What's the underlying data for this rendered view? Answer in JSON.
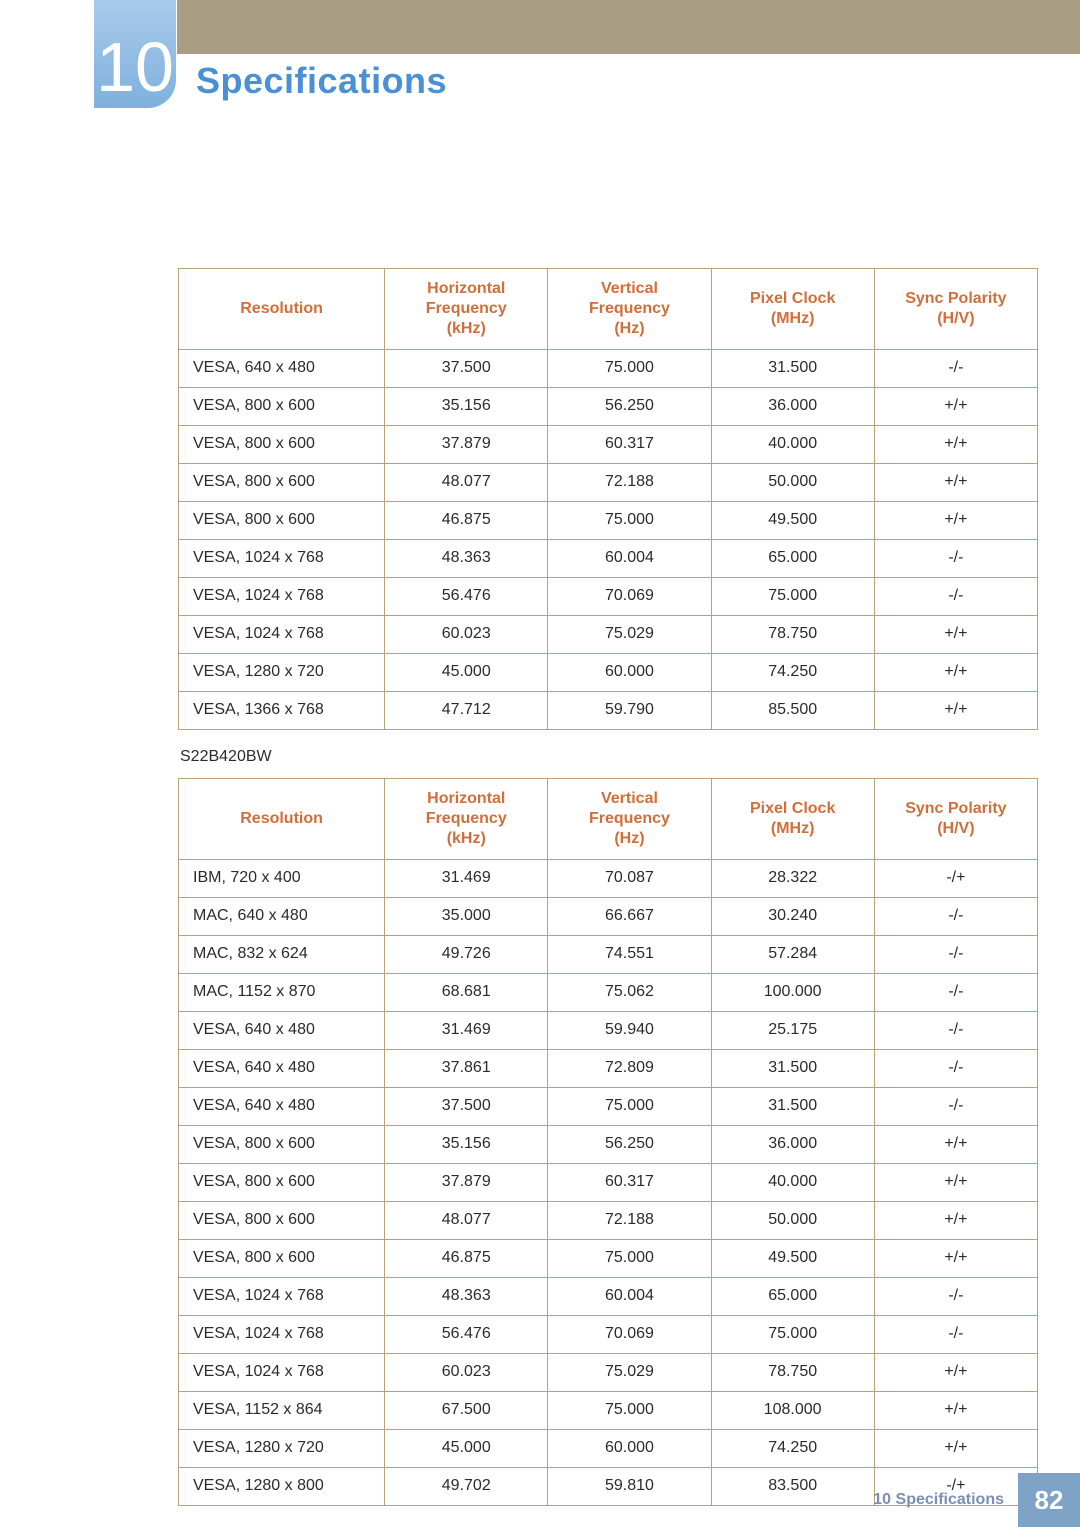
{
  "chapter_number": "10",
  "title": "Specifications",
  "columns": [
    "Resolution",
    "Horizontal Frequency (kHz)",
    "Vertical Frequency (Hz)",
    "Pixel Clock (MHz)",
    "Sync Polarity (H/V)"
  ],
  "table1": {
    "rows": [
      [
        "VESA, 640 x 480",
        "37.500",
        "75.000",
        "31.500",
        "-/-"
      ],
      [
        "VESA, 800 x 600",
        "35.156",
        "56.250",
        "36.000",
        "+/+"
      ],
      [
        "VESA, 800 x 600",
        "37.879",
        "60.317",
        "40.000",
        "+/+"
      ],
      [
        "VESA, 800 x 600",
        "48.077",
        "72.188",
        "50.000",
        "+/+"
      ],
      [
        "VESA, 800 x 600",
        "46.875",
        "75.000",
        "49.500",
        "+/+"
      ],
      [
        "VESA, 1024 x 768",
        "48.363",
        "60.004",
        "65.000",
        "-/-"
      ],
      [
        "VESA, 1024 x 768",
        "56.476",
        "70.069",
        "75.000",
        "-/-"
      ],
      [
        "VESA, 1024 x 768",
        "60.023",
        "75.029",
        "78.750",
        "+/+"
      ],
      [
        "VESA, 1280 x 720",
        "45.000",
        "60.000",
        "74.250",
        "+/+"
      ],
      [
        "VESA, 1366 x 768",
        "47.712",
        "59.790",
        "85.500",
        "+/+"
      ]
    ]
  },
  "subhead": "S22B420BW",
  "table2": {
    "rows": [
      [
        "IBM, 720 x 400",
        "31.469",
        "70.087",
        "28.322",
        "-/+"
      ],
      [
        "MAC, 640 x 480",
        "35.000",
        "66.667",
        "30.240",
        "-/-"
      ],
      [
        "MAC, 832 x 624",
        "49.726",
        "74.551",
        "57.284",
        "-/-"
      ],
      [
        "MAC, 1152 x 870",
        "68.681",
        "75.062",
        "100.000",
        "-/-"
      ],
      [
        "VESA, 640 x 480",
        "31.469",
        "59.940",
        "25.175",
        "-/-"
      ],
      [
        "VESA, 640 x 480",
        "37.861",
        "72.809",
        "31.500",
        "-/-"
      ],
      [
        "VESA, 640 x 480",
        "37.500",
        "75.000",
        "31.500",
        "-/-"
      ],
      [
        "VESA, 800 x 600",
        "35.156",
        "56.250",
        "36.000",
        "+/+"
      ],
      [
        "VESA, 800 x 600",
        "37.879",
        "60.317",
        "40.000",
        "+/+"
      ],
      [
        "VESA, 800 x 600",
        "48.077",
        "72.188",
        "50.000",
        "+/+"
      ],
      [
        "VESA, 800 x 600",
        "46.875",
        "75.000",
        "49.500",
        "+/+"
      ],
      [
        "VESA, 1024 x 768",
        "48.363",
        "60.004",
        "65.000",
        "-/-"
      ],
      [
        "VESA, 1024 x 768",
        "56.476",
        "70.069",
        "75.000",
        "-/-"
      ],
      [
        "VESA, 1024 x 768",
        "60.023",
        "75.029",
        "78.750",
        "+/+"
      ],
      [
        "VESA, 1152 x 864",
        "67.500",
        "75.000",
        "108.000",
        "+/+"
      ],
      [
        "VESA, 1280 x 720",
        "45.000",
        "60.000",
        "74.250",
        "+/+"
      ],
      [
        "VESA, 1280 x 800",
        "49.702",
        "59.810",
        "83.500",
        "-/+"
      ]
    ]
  },
  "footer": {
    "label": "10 Specifications",
    "page": "82"
  },
  "style": {
    "header_text_color": "#d26e3a",
    "title_color": "#4a90d6",
    "border_color": "#b9a27a",
    "top_strip_color": "#9b8c6e",
    "footer_pg_bg": "#7fa2c7"
  }
}
